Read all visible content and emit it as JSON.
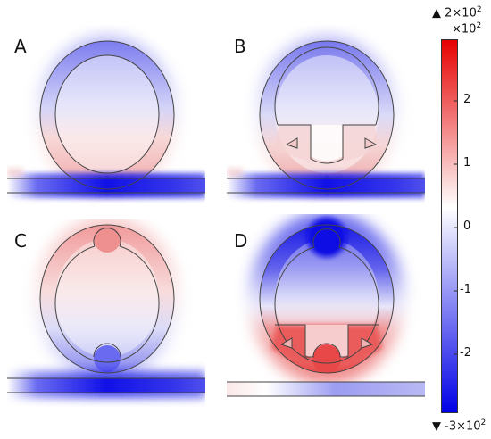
{
  "panels": [
    {
      "label": "A"
    },
    {
      "label": "B"
    },
    {
      "label": "C"
    },
    {
      "label": "D"
    }
  ],
  "colorbar": {
    "max_marker": "▲ 2×10",
    "max_exp": "2",
    "scale_unit": "×10",
    "scale_exp": "2",
    "min_marker": "▼ -3×10",
    "min_exp": "2",
    "ticks": [
      "2",
      "1",
      "0",
      "-1",
      "-2"
    ],
    "colors": {
      "positive": "#e60000",
      "zero": "#ffffff",
      "negative": "#0000e6"
    }
  }
}
